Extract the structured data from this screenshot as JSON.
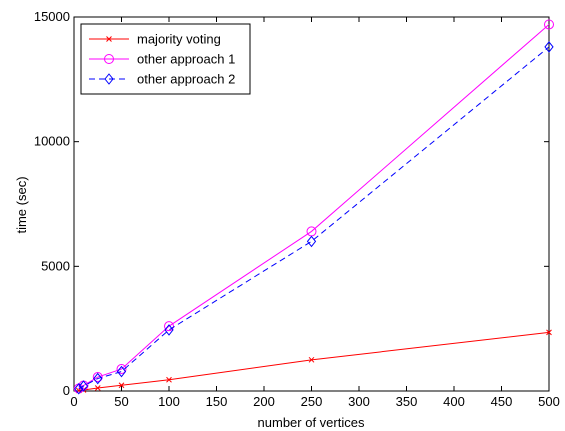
{
  "chart_data": {
    "type": "line",
    "title": "",
    "xlabel": "number of vertices",
    "ylabel": "time (sec)",
    "xlim": [
      0,
      500
    ],
    "ylim": [
      0,
      15000
    ],
    "xticks": [
      0,
      50,
      100,
      150,
      200,
      250,
      300,
      350,
      400,
      450,
      500
    ],
    "yticks": [
      0,
      5000,
      10000,
      15000
    ],
    "grid": false,
    "legend_position": "top-left",
    "x": [
      5,
      10,
      25,
      50,
      100,
      250,
      500
    ],
    "series": [
      {
        "name": "majority voting",
        "color": "#ff0000",
        "line_style": "solid",
        "marker": "x",
        "values": [
          20,
          40,
          120,
          230,
          450,
          1250,
          2350
        ]
      },
      {
        "name": "other approach 1",
        "color": "#ff00ff",
        "line_style": "solid",
        "marker": "circle",
        "values": [
          100,
          220,
          560,
          880,
          2600,
          6400,
          14700
        ]
      },
      {
        "name": "other approach 2",
        "color": "#0000ff",
        "line_style": "dashed",
        "marker": "diamond",
        "values": [
          90,
          200,
          500,
          780,
          2450,
          6000,
          13800
        ]
      }
    ]
  }
}
